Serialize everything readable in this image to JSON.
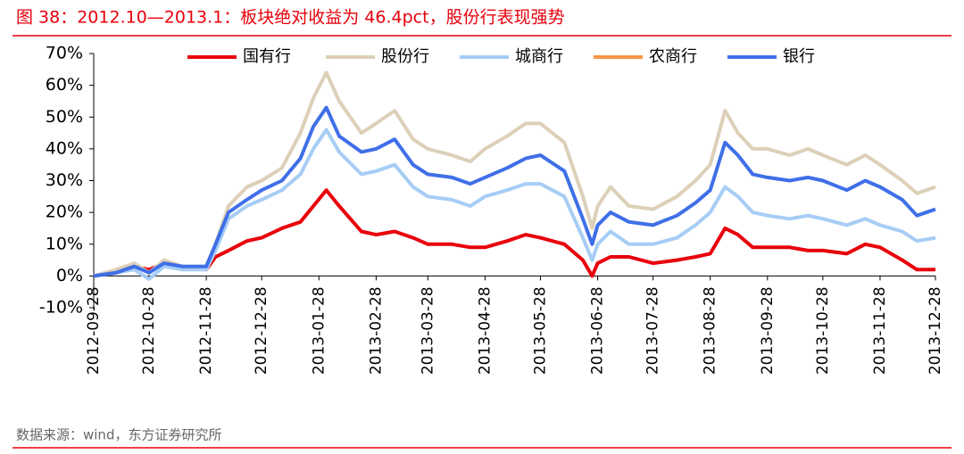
{
  "chart_data": {
    "type": "line",
    "title": "图 38：2012.10—2013.1：板块绝对收益为 46.4pct，股份行表现强势",
    "source": "数据来源：wind，东方证券研究所",
    "x": [
      "2012-09-28",
      "2012-10-10",
      "2012-10-20",
      "2012-10-28",
      "2012-11-05",
      "2012-11-15",
      "2012-11-28",
      "2012-12-03",
      "2012-12-10",
      "2012-12-20",
      "2012-12-28",
      "2013-01-08",
      "2013-01-18",
      "2013-01-25",
      "2013-02-01",
      "2013-02-08",
      "2013-02-20",
      "2013-02-28",
      "2013-03-10",
      "2013-03-20",
      "2013-03-28",
      "2013-04-10",
      "2013-04-20",
      "2013-04-28",
      "2013-05-10",
      "2013-05-20",
      "2013-05-28",
      "2013-06-10",
      "2013-06-20",
      "2013-06-25",
      "2013-06-28",
      "2013-07-05",
      "2013-07-15",
      "2013-07-28",
      "2013-08-10",
      "2013-08-20",
      "2013-08-28",
      "2013-09-05",
      "2013-09-12",
      "2013-09-20",
      "2013-09-28",
      "2013-10-10",
      "2013-10-20",
      "2013-10-28",
      "2013-11-10",
      "2013-11-20",
      "2013-11-28",
      "2013-12-10",
      "2013-12-18",
      "2013-12-28"
    ],
    "series": [
      {
        "name": "国有行",
        "color": "#e8000b",
        "values": [
          0,
          1,
          3,
          2,
          4,
          3,
          2,
          6,
          8,
          11,
          12,
          15,
          17,
          22,
          27,
          22,
          14,
          13,
          14,
          12,
          10,
          10,
          9,
          9,
          11,
          13,
          12,
          10,
          5,
          0,
          4,
          6,
          6,
          4,
          5,
          6,
          7,
          15,
          13,
          9,
          9,
          9,
          8,
          8,
          7,
          10,
          9,
          5,
          2,
          2
        ]
      },
      {
        "name": "股份行",
        "color": "#ddd0b8",
        "values": [
          0,
          2,
          4,
          1,
          5,
          3,
          3,
          10,
          22,
          28,
          30,
          34,
          45,
          56,
          64,
          55,
          45,
          48,
          52,
          43,
          40,
          38,
          36,
          40,
          44,
          48,
          48,
          42,
          25,
          15,
          22,
          28,
          22,
          21,
          25,
          30,
          35,
          52,
          45,
          40,
          40,
          38,
          40,
          38,
          35,
          38,
          35,
          30,
          26,
          28
        ]
      },
      {
        "name": "城商行",
        "color": "#a6cdf5",
        "values": [
          0,
          1,
          2,
          -1,
          3,
          2,
          2,
          8,
          18,
          22,
          24,
          27,
          32,
          40,
          46,
          39,
          32,
          33,
          35,
          28,
          25,
          24,
          22,
          25,
          27,
          29,
          29,
          25,
          12,
          5,
          10,
          14,
          10,
          10,
          12,
          16,
          20,
          28,
          25,
          20,
          19,
          18,
          19,
          18,
          16,
          18,
          16,
          14,
          11,
          12
        ]
      },
      {
        "name": "农商行",
        "color": "#f79646",
        "values": [
          null,
          null,
          null,
          null,
          null,
          null,
          null,
          null,
          null,
          null,
          null,
          null,
          null,
          null,
          null,
          null,
          null,
          null,
          null,
          null,
          null,
          null,
          null,
          null,
          null,
          null,
          null,
          null,
          null,
          null,
          null,
          null,
          null,
          null,
          null,
          null,
          null,
          null,
          null,
          null,
          null,
          null,
          null,
          null,
          null,
          null,
          null,
          null,
          null,
          null
        ]
      },
      {
        "name": "银行",
        "color": "#3f6fe8",
        "values": [
          0,
          1,
          3,
          1,
          4,
          3,
          3,
          10,
          20,
          24,
          27,
          30,
          37,
          47,
          53,
          44,
          39,
          40,
          43,
          35,
          32,
          31,
          29,
          31,
          34,
          37,
          38,
          33,
          18,
          10,
          16,
          20,
          17,
          16,
          19,
          23,
          27,
          42,
          38,
          32,
          31,
          30,
          31,
          30,
          27,
          30,
          28,
          24,
          19,
          21
        ]
      }
    ],
    "xlim": [
      "2012-09-28",
      "2013-12-28"
    ],
    "xticks": [
      "2012-09-28",
      "2012-10-28",
      "2012-11-28",
      "2012-12-28",
      "2013-01-28",
      "2013-02-28",
      "2013-03-28",
      "2013-04-28",
      "2013-05-28",
      "2013-06-28",
      "2013-07-28",
      "2013-08-28",
      "2013-09-28",
      "2013-10-28",
      "2013-11-28",
      "2013-12-28"
    ],
    "ylim": [
      -10,
      70
    ],
    "yticks": [
      {
        "value": -10,
        "label": "-10%"
      },
      {
        "value": 0,
        "label": "0%"
      },
      {
        "value": 10,
        "label": "10%"
      },
      {
        "value": 20,
        "label": "20%"
      },
      {
        "value": 30,
        "label": "30%"
      },
      {
        "value": 40,
        "label": "40%"
      },
      {
        "value": 50,
        "label": "50%"
      },
      {
        "value": 60,
        "label": "60%"
      },
      {
        "value": 70,
        "label": "70%"
      }
    ],
    "legend": "top"
  }
}
